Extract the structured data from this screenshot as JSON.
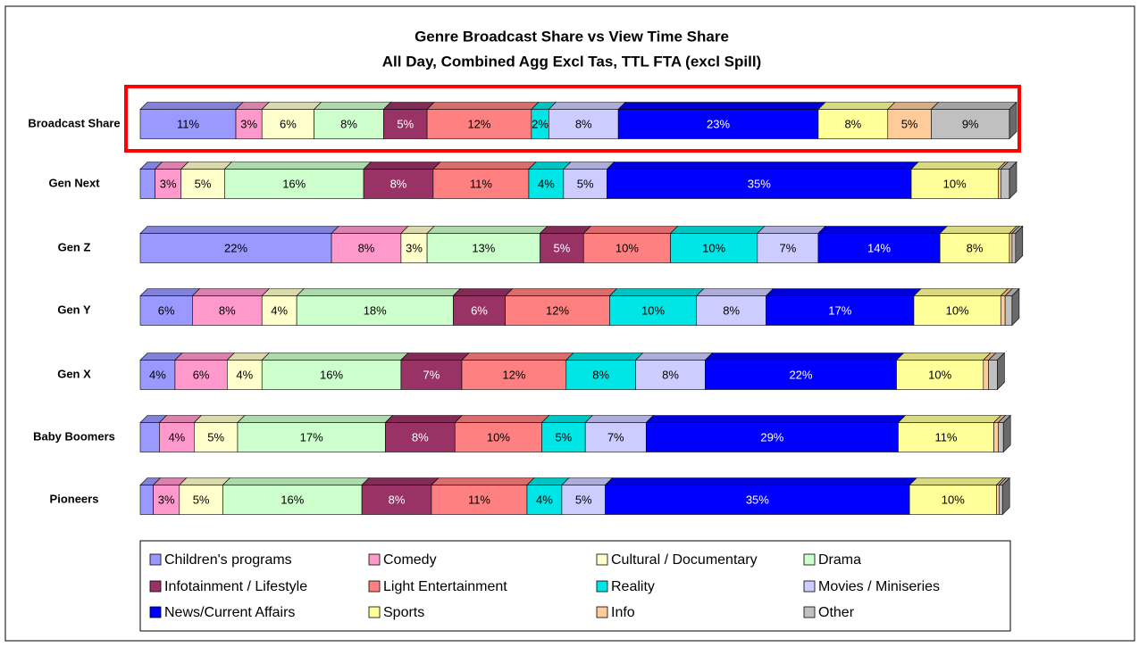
{
  "chart_data": {
    "type": "stacked-bar-horizontal-3d",
    "title": "Genre Broadcast Share vs View Time Share",
    "subtitle": "All Day, Combined Agg Excl Tas, TTL FTA (excl Spill)",
    "categories": [
      "Broadcast Share",
      "Gen Next",
      "Gen Z",
      "Gen Y",
      "Gen X",
      "Baby Boomers",
      "Pioneers"
    ],
    "xlim": [
      0,
      100
    ],
    "series": [
      {
        "name": "Children's programs",
        "color": "#9999ff",
        "values": [
          11,
          1.7,
          22,
          6,
          4,
          2.2,
          1.5
        ],
        "value_labels": [
          "11%",
          null,
          "22%",
          "6%",
          "4%",
          null,
          null
        ]
      },
      {
        "name": "Comedy",
        "color": "#ff99cc",
        "values": [
          3,
          3,
          8,
          8,
          6,
          4,
          3
        ],
        "value_labels": [
          "3%",
          "3%",
          "8%",
          "8%",
          "6%",
          "4%",
          "3%"
        ]
      },
      {
        "name": "Cultural / Documentary",
        "color": "#ffffcc",
        "values": [
          6,
          5,
          3,
          4,
          4,
          5,
          5
        ],
        "value_labels": [
          "6%",
          "5%",
          "3%",
          "4%",
          "4%",
          "5%",
          "5%"
        ]
      },
      {
        "name": "Drama",
        "color": "#ccffcc",
        "values": [
          8,
          16,
          13,
          18,
          16,
          17,
          16
        ],
        "value_labels": [
          "8%",
          "16%",
          "13%",
          "18%",
          "16%",
          "17%",
          "16%"
        ]
      },
      {
        "name": "Infotainment / Lifestyle",
        "color": "#993366",
        "values": [
          5,
          8,
          5,
          6,
          7,
          8,
          8
        ],
        "value_labels": [
          "5%",
          "8%",
          "5%",
          "6%",
          "7%",
          "8%",
          "8%"
        ]
      },
      {
        "name": "Light Entertainment",
        "color": "#ff8080",
        "values": [
          12,
          11,
          10,
          12,
          12,
          10,
          11
        ],
        "value_labels": [
          "12%",
          "11%",
          "10%",
          "12%",
          "12%",
          "10%",
          "11%"
        ]
      },
      {
        "name": "Reality",
        "color": "#00e5e5",
        "values": [
          2,
          4,
          10,
          10,
          8,
          5,
          4
        ],
        "value_labels": [
          "2%",
          "4%",
          "10%",
          "10%",
          "8%",
          "5%",
          "4%"
        ]
      },
      {
        "name": "Movies / Miniseries",
        "color": "#ccccff",
        "values": [
          8,
          5,
          7,
          8,
          8,
          7,
          5
        ],
        "value_labels": [
          "8%",
          "5%",
          "7%",
          "8%",
          "8%",
          "7%",
          "5%"
        ]
      },
      {
        "name": "News/Current Affairs",
        "color": "#0000ff",
        "values": [
          23,
          35,
          14,
          17,
          22,
          29,
          35
        ],
        "value_labels": [
          "23%",
          "35%",
          "14%",
          "17%",
          "22%",
          "29%",
          "35%"
        ]
      },
      {
        "name": "Sports",
        "color": "#ffff99",
        "values": [
          8,
          10,
          8,
          10,
          10,
          11,
          10
        ],
        "value_labels": [
          "8%",
          "10%",
          "8%",
          "10%",
          "10%",
          "11%",
          "10%"
        ]
      },
      {
        "name": "Info",
        "color": "#ffcc99",
        "values": [
          5,
          0.3,
          0.3,
          0.5,
          0.6,
          0.5,
          0.3
        ],
        "value_labels": [
          "5%",
          null,
          null,
          null,
          null,
          null,
          null
        ]
      },
      {
        "name": "Other",
        "color": "#c0c0c0",
        "values": [
          9,
          1,
          0.4,
          0.8,
          1,
          0.6,
          0.4
        ],
        "value_labels": [
          "9%",
          null,
          null,
          null,
          null,
          null,
          null
        ]
      }
    ]
  }
}
